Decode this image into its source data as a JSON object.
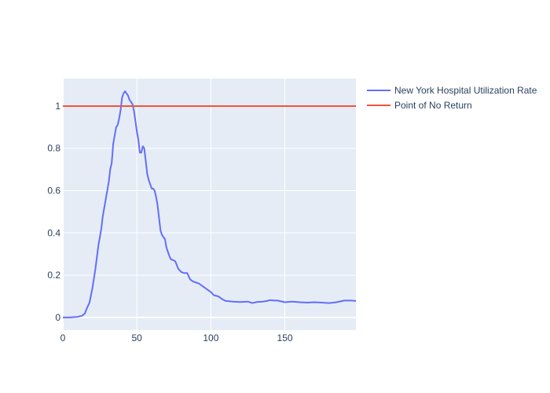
{
  "chart_data": {
    "type": "line",
    "title": "",
    "xlabel": "",
    "ylabel": "",
    "xlim": [
      0,
      198
    ],
    "ylim": [
      -0.06,
      1.13
    ],
    "x_ticks": [
      0,
      50,
      100,
      150
    ],
    "y_ticks": [
      0,
      0.2,
      0.4,
      0.6,
      0.8,
      1
    ],
    "x_tick_labels": [
      "0",
      "50",
      "100",
      "150"
    ],
    "y_tick_labels": [
      "0",
      "0.2",
      "0.4",
      "0.6",
      "0.8",
      "1"
    ],
    "grid": true,
    "legend_position": "top-right",
    "plot_bg": "#e5ecf6",
    "series": [
      {
        "name": "New York Hospital Utilization Rate",
        "color": "#636efa",
        "points": [
          [
            0,
            0.0
          ],
          [
            5,
            0.0
          ],
          [
            10,
            0.003
          ],
          [
            13,
            0.008
          ],
          [
            15,
            0.02
          ],
          [
            16,
            0.04
          ],
          [
            18,
            0.07
          ],
          [
            20,
            0.14
          ],
          [
            22,
            0.23
          ],
          [
            24,
            0.34
          ],
          [
            26,
            0.42
          ],
          [
            27,
            0.48
          ],
          [
            29,
            0.56
          ],
          [
            31,
            0.64
          ],
          [
            32,
            0.7
          ],
          [
            33,
            0.73
          ],
          [
            34,
            0.82
          ],
          [
            35,
            0.86
          ],
          [
            36,
            0.9
          ],
          [
            37,
            0.91
          ],
          [
            38,
            0.94
          ],
          [
            39,
            0.98
          ],
          [
            40,
            1.04
          ],
          [
            41,
            1.06
          ],
          [
            42,
            1.07
          ],
          [
            43,
            1.06
          ],
          [
            44,
            1.05
          ],
          [
            45,
            1.03
          ],
          [
            47,
            1.01
          ],
          [
            48,
            0.98
          ],
          [
            49,
            0.93
          ],
          [
            50,
            0.88
          ],
          [
            51,
            0.84
          ],
          [
            52,
            0.78
          ],
          [
            53,
            0.78
          ],
          [
            54,
            0.81
          ],
          [
            55,
            0.8
          ],
          [
            56,
            0.74
          ],
          [
            57,
            0.68
          ],
          [
            58,
            0.65
          ],
          [
            59,
            0.63
          ],
          [
            60,
            0.61
          ],
          [
            61,
            0.61
          ],
          [
            62,
            0.6
          ],
          [
            63,
            0.57
          ],
          [
            64,
            0.53
          ],
          [
            65,
            0.47
          ],
          [
            66,
            0.41
          ],
          [
            67,
            0.39
          ],
          [
            69,
            0.37
          ],
          [
            70,
            0.33
          ],
          [
            71,
            0.31
          ],
          [
            72,
            0.29
          ],
          [
            73,
            0.275
          ],
          [
            75,
            0.27
          ],
          [
            76,
            0.265
          ],
          [
            78,
            0.23
          ],
          [
            80,
            0.215
          ],
          [
            82,
            0.21
          ],
          [
            84,
            0.21
          ],
          [
            86,
            0.18
          ],
          [
            88,
            0.17
          ],
          [
            90,
            0.165
          ],
          [
            92,
            0.16
          ],
          [
            94,
            0.15
          ],
          [
            96,
            0.14
          ],
          [
            98,
            0.13
          ],
          [
            100,
            0.12
          ],
          [
            102,
            0.105
          ],
          [
            105,
            0.1
          ],
          [
            108,
            0.085
          ],
          [
            110,
            0.078
          ],
          [
            115,
            0.075
          ],
          [
            120,
            0.073
          ],
          [
            125,
            0.075
          ],
          [
            128,
            0.068
          ],
          [
            131,
            0.073
          ],
          [
            135,
            0.075
          ],
          [
            138,
            0.078
          ],
          [
            140,
            0.082
          ],
          [
            143,
            0.08
          ],
          [
            145,
            0.08
          ],
          [
            150,
            0.072
          ],
          [
            155,
            0.075
          ],
          [
            160,
            0.072
          ],
          [
            165,
            0.07
          ],
          [
            170,
            0.072
          ],
          [
            175,
            0.07
          ],
          [
            180,
            0.068
          ],
          [
            185,
            0.072
          ],
          [
            190,
            0.08
          ],
          [
            195,
            0.08
          ],
          [
            198,
            0.078
          ]
        ]
      },
      {
        "name": "Point of No Return",
        "color": "#ef553b",
        "points": [
          [
            0,
            1
          ],
          [
            198,
            1
          ]
        ]
      }
    ]
  }
}
